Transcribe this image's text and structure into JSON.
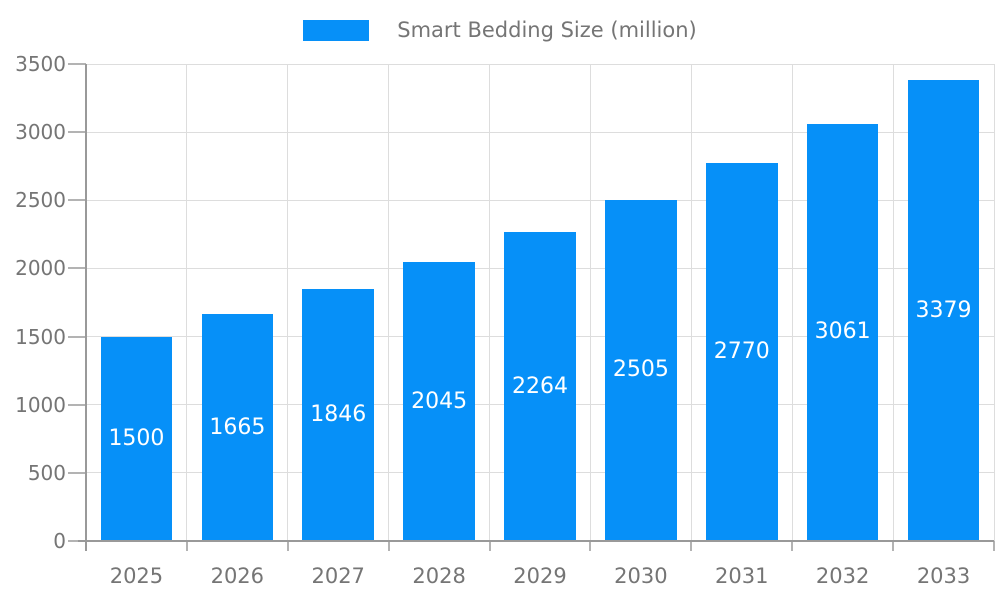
{
  "chart_data": {
    "type": "bar",
    "title": "",
    "legend": "Smart Bedding Size (million)",
    "legend_position": "top-center",
    "categories": [
      "2025",
      "2026",
      "2027",
      "2028",
      "2029",
      "2030",
      "2031",
      "2032",
      "2033"
    ],
    "values": [
      1500,
      1665,
      1846,
      2045,
      2264,
      2505,
      2770,
      3061,
      3379
    ],
    "xlabel": "",
    "ylabel": "",
    "ylim": [
      0,
      3500
    ],
    "yticks": [
      0,
      500,
      1000,
      1500,
      2000,
      2500,
      3000,
      3500
    ],
    "grid": true,
    "value_labels_inside_bars": true,
    "colors": {
      "bar": "#0690F8",
      "value_label": "#ffffff",
      "axis": "#999999",
      "tick": "#b3b3b3",
      "gridline": "#dddddd",
      "tick_label": "#757575",
      "legend_text": "#757575",
      "background": "#ffffff"
    }
  }
}
